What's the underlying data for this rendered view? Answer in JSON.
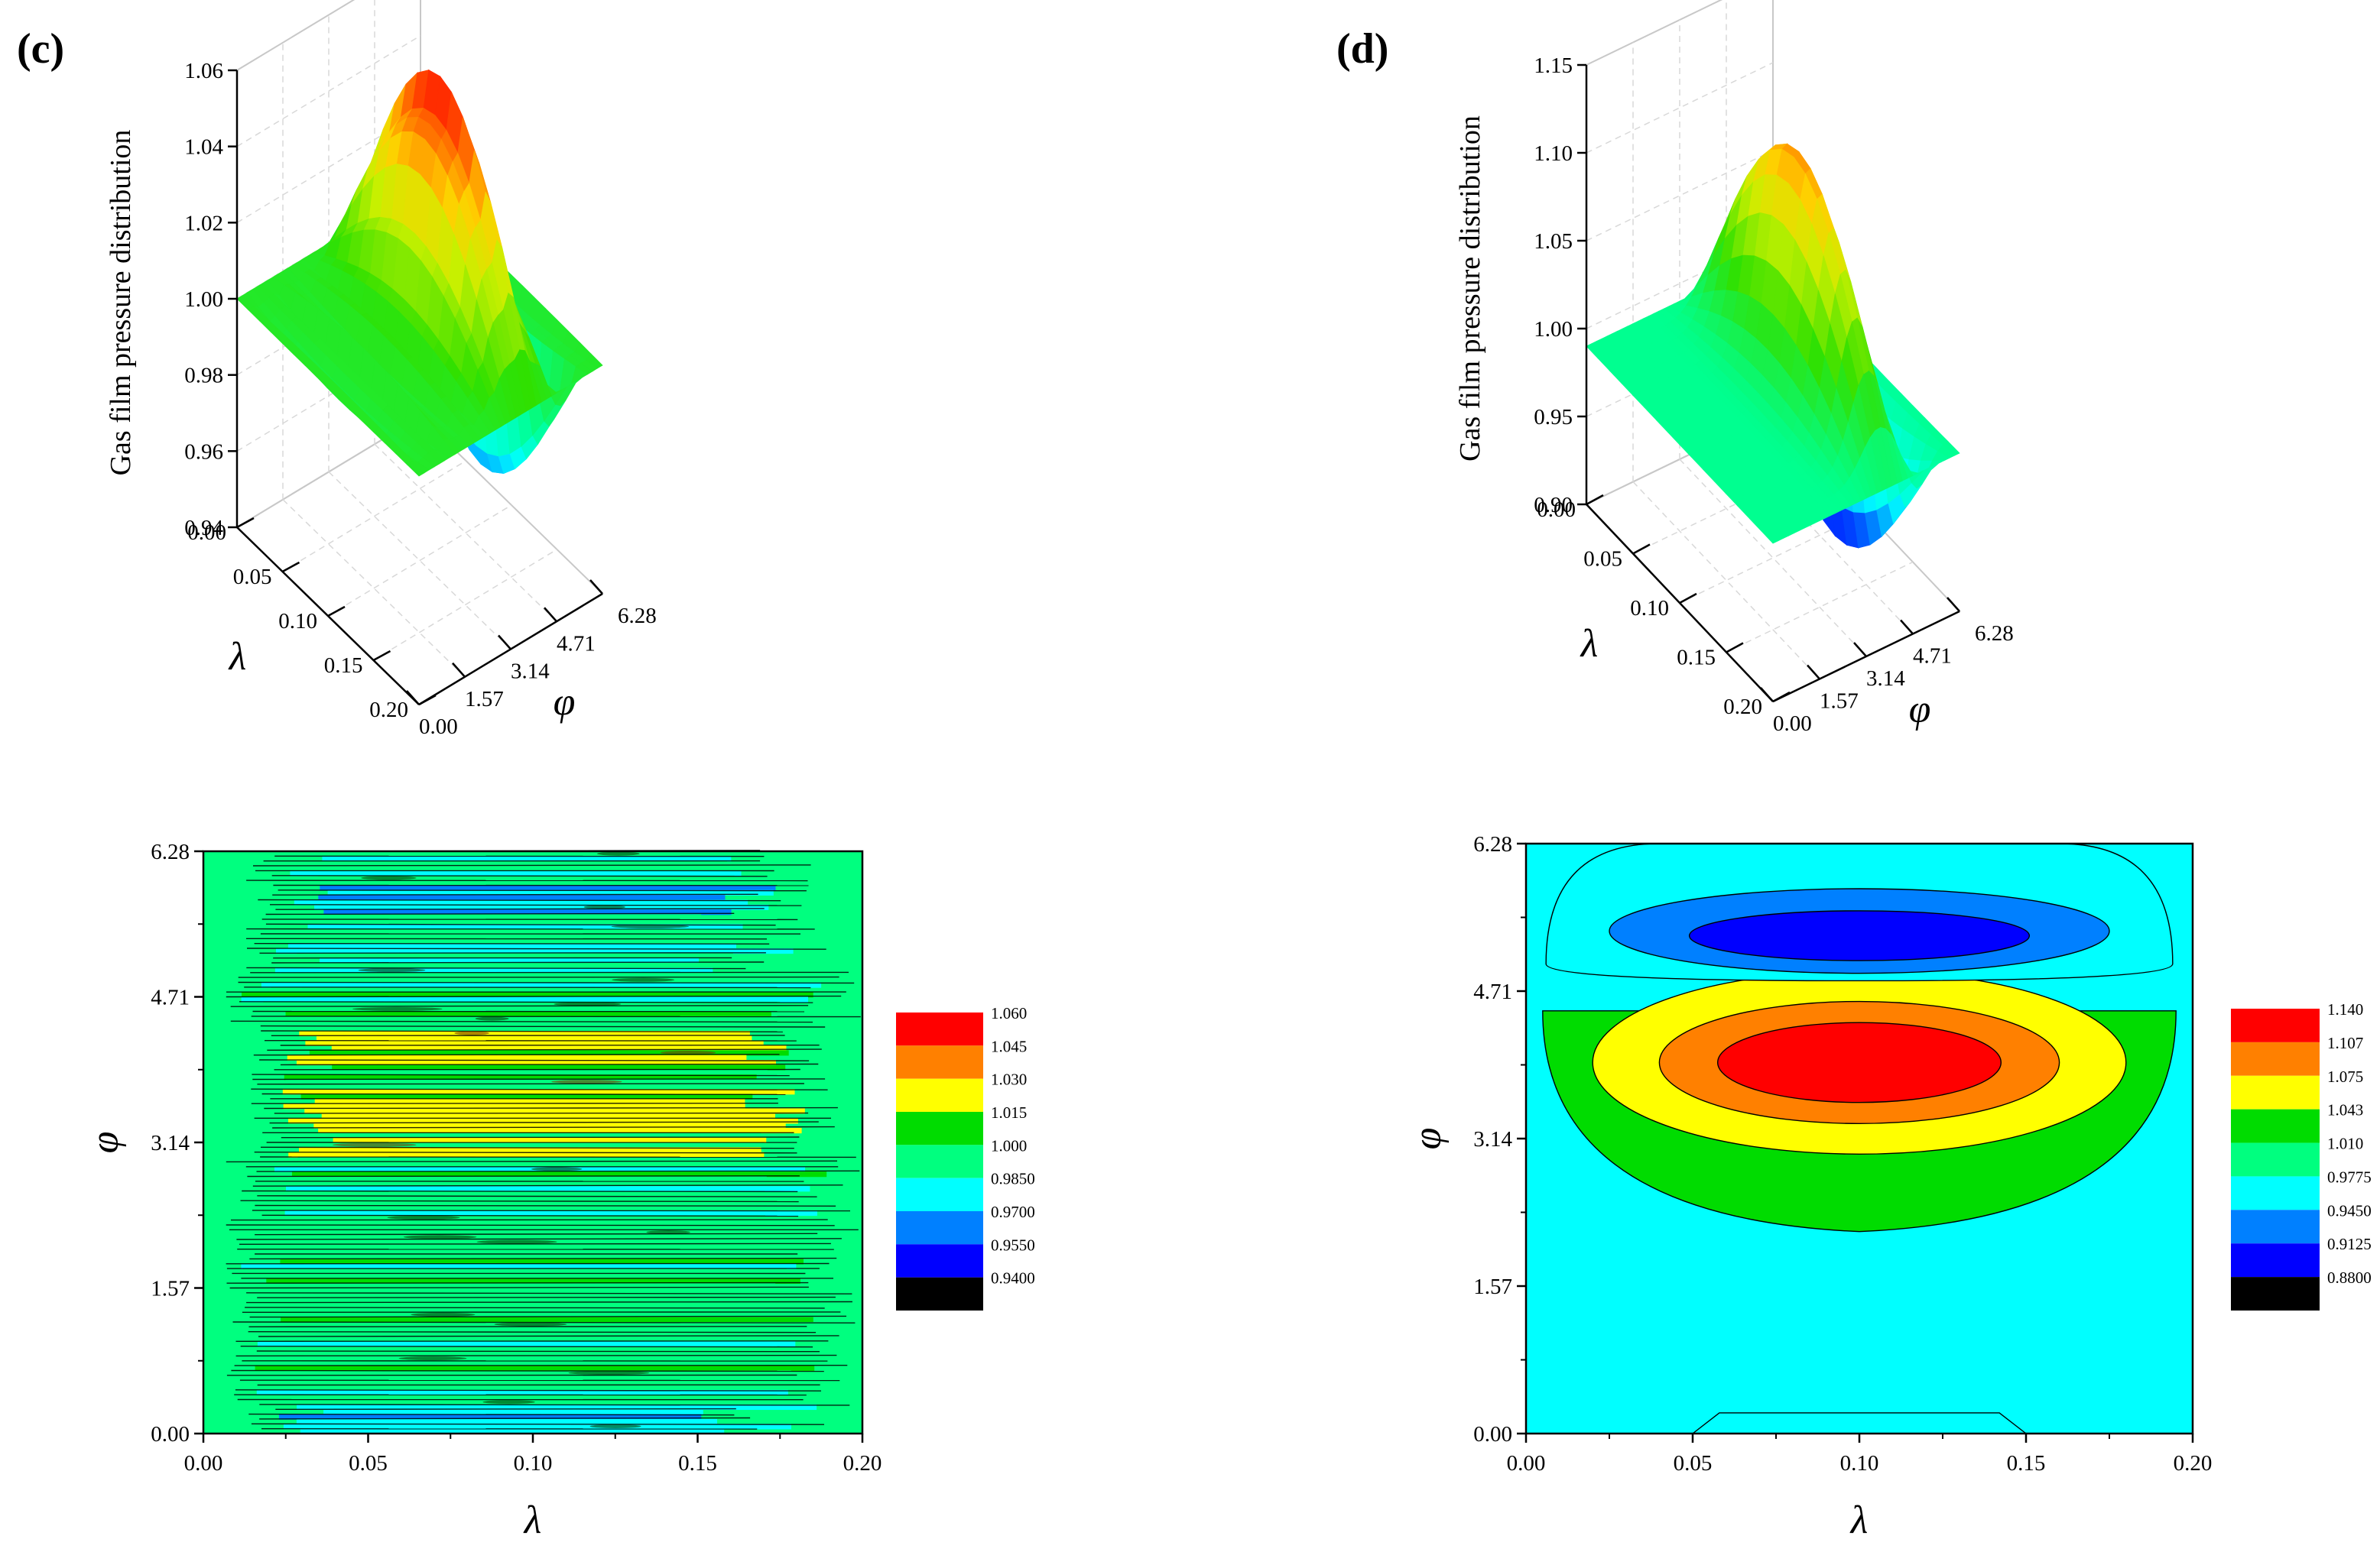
{
  "figure": {
    "panel_c_label": "(c)",
    "panel_d_label": "(d)"
  },
  "chart_data": [
    {
      "id": "c-surface",
      "type": "surface3d",
      "panel": "(c)",
      "zlabel": "Gas film pressure distribution",
      "xlabel": "φ",
      "ylabel": "λ",
      "z_ticks": [
        "0.94",
        "0.96",
        "0.98",
        "1.00",
        "1.02",
        "1.04",
        "1.06"
      ],
      "x_ticks": [
        "0.00",
        "1.57",
        "3.14",
        "4.71",
        "6.28"
      ],
      "y_ticks": [
        "0.00",
        "0.05",
        "0.10",
        "0.15",
        "0.20"
      ],
      "zlim": [
        0.94,
        1.06
      ],
      "xlim": [
        0,
        6.28
      ],
      "ylim": [
        0,
        0.2
      ],
      "z_max_approx": 1.055,
      "z_min_approx": 0.94,
      "noisy": true
    },
    {
      "id": "d-surface",
      "type": "surface3d",
      "panel": "(d)",
      "zlabel": "Gas film pressure distribution",
      "xlabel": "φ",
      "ylabel": "λ",
      "z_ticks": [
        "0.90",
        "0.95",
        "1.00",
        "1.05",
        "1.10",
        "1.15"
      ],
      "x_ticks": [
        "0.00",
        "1.57",
        "3.14",
        "4.71",
        "6.28"
      ],
      "y_ticks": [
        "0.00",
        "0.05",
        "0.10",
        "0.15",
        "0.20"
      ],
      "zlim": [
        0.9,
        1.15
      ],
      "xlim": [
        0,
        6.28
      ],
      "ylim": [
        0,
        0.2
      ],
      "z_max_approx": 1.14,
      "z_min_approx": 0.88,
      "noisy": false
    },
    {
      "id": "c-contour",
      "type": "contour",
      "panel": "(c)",
      "xlabel": "λ",
      "ylabel": "φ",
      "x_ticks": [
        "0.00",
        "0.05",
        "0.10",
        "0.15",
        "0.20"
      ],
      "y_ticks": [
        "0.00",
        "1.57",
        "3.14",
        "4.71",
        "6.28"
      ],
      "xlim": [
        0,
        0.2
      ],
      "ylim": [
        0,
        6.28
      ],
      "levels": [
        "1.060",
        "1.045",
        "1.030",
        "1.015",
        "1.000",
        "0.9850",
        "0.9700",
        "0.9550",
        "0.9400"
      ],
      "level_colors": [
        "#ff0000",
        "#ff8000",
        "#ffff00",
        "#00dc00",
        "#00ff7f",
        "#00ffff",
        "#0080ff",
        "#0000ff",
        "#000000"
      ],
      "noisy": true
    },
    {
      "id": "d-contour",
      "type": "contour",
      "panel": "(d)",
      "xlabel": "λ",
      "ylabel": "φ",
      "x_ticks": [
        "0.00",
        "0.05",
        "0.10",
        "0.15",
        "0.20"
      ],
      "y_ticks": [
        "0.00",
        "1.57",
        "3.14",
        "4.71",
        "6.28"
      ],
      "xlim": [
        0,
        0.2
      ],
      "ylim": [
        0,
        6.28
      ],
      "levels": [
        "1.140",
        "1.107",
        "1.075",
        "1.043",
        "1.010",
        "0.9775",
        "0.9450",
        "0.9125",
        "0.8800"
      ],
      "level_colors": [
        "#ff0000",
        "#ff8000",
        "#ffff00",
        "#00dc00",
        "#00ff7f",
        "#00ffff",
        "#0080ff",
        "#0000ff",
        "#000000"
      ],
      "noisy": false
    }
  ]
}
